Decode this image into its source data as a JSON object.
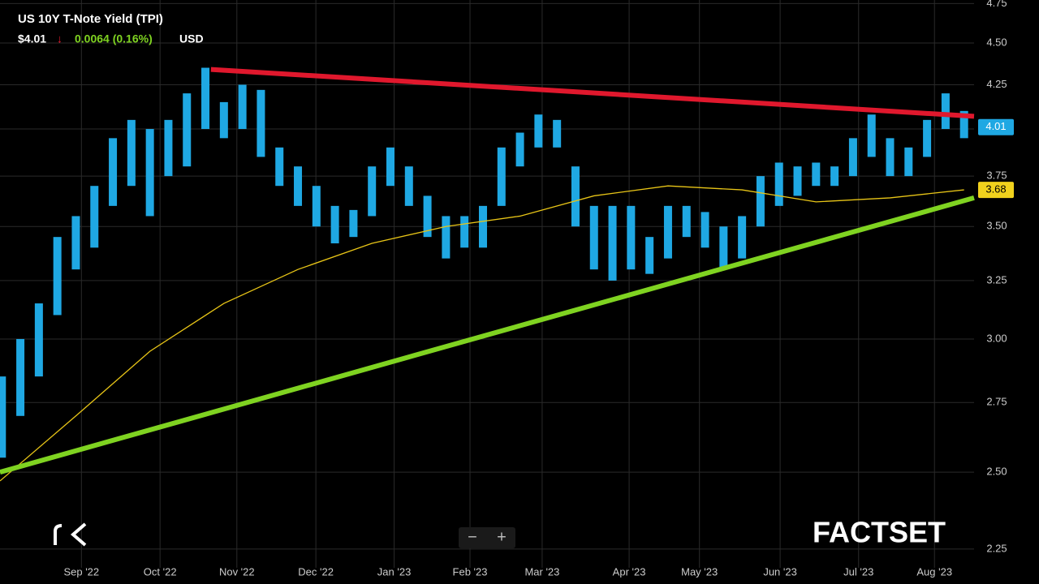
{
  "chart_data": {
    "type": "range_bar",
    "title": "US 10Y T-Note Yield (TPI)",
    "price": "$4.01",
    "change": "0.0064 (0.16%)",
    "currency": "USD",
    "brand": "FACTSET",
    "color": "#1fa8e3",
    "log_scale": true,
    "grid": true,
    "xlim": [
      -0.1,
      52.54
    ],
    "ylim": [
      2.193,
      4.773
    ],
    "xticks": [
      {
        "value": 4.3,
        "label": "Sep '22"
      },
      {
        "value": 8.55,
        "label": "Oct '22"
      },
      {
        "value": 12.7,
        "label": "Nov '22"
      },
      {
        "value": 16.97,
        "label": "Dec '22"
      },
      {
        "value": 21.2,
        "label": "Jan '23"
      },
      {
        "value": 25.3,
        "label": "Feb '23"
      },
      {
        "value": 29.2,
        "label": "Mar '23"
      },
      {
        "value": 33.9,
        "label": "Apr '23"
      },
      {
        "value": 37.7,
        "label": "May '23"
      },
      {
        "value": 42.06,
        "label": "Jun '23"
      },
      {
        "value": 46.3,
        "label": "Jul '23"
      },
      {
        "value": 50.4,
        "label": "Aug '23"
      }
    ],
    "yticks": [
      {
        "value": 2.25,
        "label": "2.25"
      },
      {
        "value": 2.5,
        "label": "2.50"
      },
      {
        "value": 2.75,
        "label": "2.75"
      },
      {
        "value": 3,
        "label": "3.00"
      },
      {
        "value": 3.25,
        "label": "3.25"
      },
      {
        "value": 3.5,
        "label": "3.50"
      },
      {
        "value": 3.75,
        "label": "3.75"
      },
      {
        "value": 4,
        "label": "4.00"
      },
      {
        "value": 4.25,
        "label": "4.25"
      },
      {
        "value": 4.5,
        "label": "4.50"
      },
      {
        "value": 4.75,
        "label": "4.75"
      }
    ],
    "x": [
      0,
      1,
      2,
      3,
      4,
      5,
      6,
      7,
      8,
      9,
      10,
      11,
      12,
      13,
      14,
      15,
      16,
      17,
      18,
      19,
      20,
      21,
      22,
      23,
      24,
      25,
      26,
      27,
      28,
      29,
      30,
      31,
      32,
      33,
      34,
      35,
      36,
      37,
      38,
      39,
      40,
      41,
      42,
      43,
      44,
      45,
      46,
      47,
      48,
      49,
      50,
      51,
      52
    ],
    "high": [
      2.85,
      3.0,
      3.15,
      3.45,
      3.55,
      3.7,
      3.95,
      4.05,
      4.0,
      4.05,
      4.2,
      4.35,
      4.15,
      4.25,
      4.22,
      3.9,
      3.8,
      3.7,
      3.6,
      3.58,
      3.8,
      3.9,
      3.8,
      3.65,
      3.55,
      3.55,
      3.6,
      3.9,
      3.98,
      4.08,
      4.05,
      3.8,
      3.6,
      3.6,
      3.6,
      3.45,
      3.6,
      3.6,
      3.57,
      3.5,
      3.55,
      3.75,
      3.82,
      3.8,
      3.82,
      3.8,
      3.95,
      4.08,
      3.95,
      3.9,
      4.05,
      4.2,
      4.1
    ],
    "low": [
      2.55,
      2.7,
      2.85,
      3.1,
      3.3,
      3.4,
      3.6,
      3.7,
      3.55,
      3.75,
      3.8,
      4.0,
      3.95,
      4.0,
      3.85,
      3.7,
      3.6,
      3.5,
      3.42,
      3.45,
      3.55,
      3.7,
      3.6,
      3.45,
      3.35,
      3.4,
      3.4,
      3.6,
      3.8,
      3.9,
      3.9,
      3.5,
      3.3,
      3.25,
      3.3,
      3.28,
      3.35,
      3.45,
      3.4,
      3.3,
      3.35,
      3.5,
      3.6,
      3.65,
      3.7,
      3.7,
      3.75,
      3.85,
      3.75,
      3.75,
      3.85,
      4.0,
      3.95
    ],
    "moving_average": {
      "color": "#e8c517",
      "x": [
        -0.1,
        4,
        8,
        12,
        16,
        20,
        24,
        28,
        32,
        36,
        40,
        44,
        48,
        52
      ],
      "values": [
        2.47,
        2.7,
        2.95,
        3.15,
        3.3,
        3.42,
        3.5,
        3.55,
        3.65,
        3.7,
        3.68,
        3.62,
        3.64,
        3.68
      ]
    },
    "trendlines": [
      {
        "color": "#e0182d",
        "x": [
          11.3,
          52.54
        ],
        "values": [
          4.34,
          4.07
        ]
      },
      {
        "color": "#7fd321",
        "x": [
          -0.1,
          52.54
        ],
        "values": [
          2.5,
          3.64
        ]
      }
    ],
    "last_labels": [
      {
        "value": 4.01,
        "color": "#1fa8e3"
      },
      {
        "value": 3.68,
        "color": "#f1d21d"
      }
    ]
  }
}
